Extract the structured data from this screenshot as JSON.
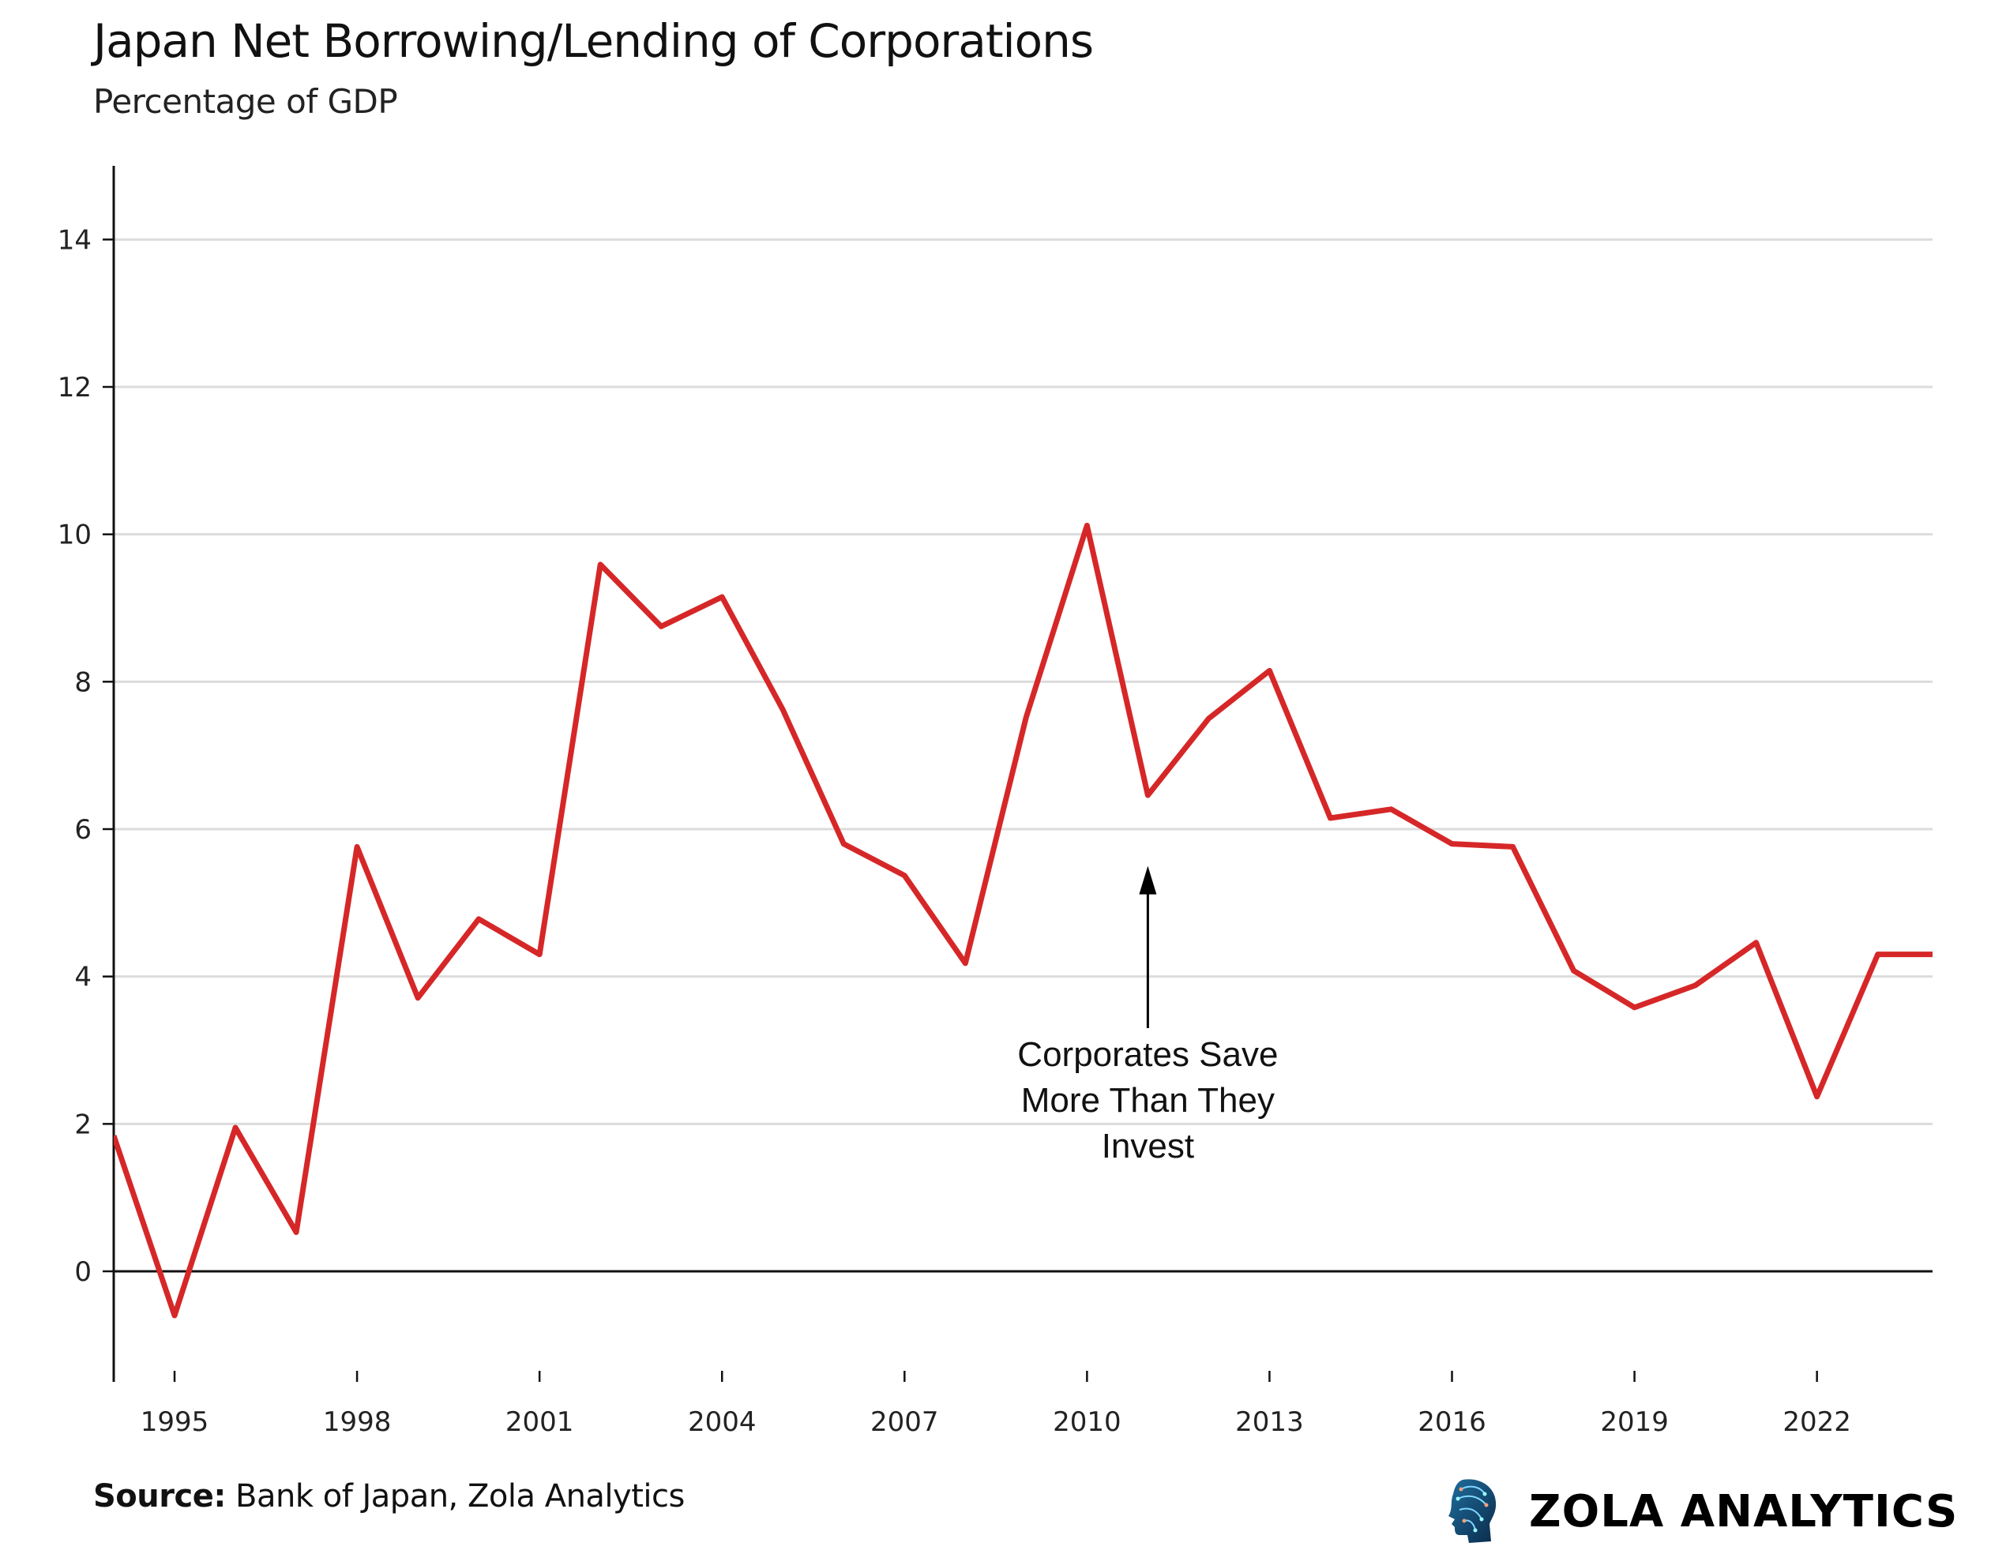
{
  "chart_data": {
    "type": "line",
    "title": "Japan Net Borrowing/Lending of Corporations",
    "subtitle": "Percentage of GDP",
    "xlabel": "",
    "ylabel": "",
    "xlim": [
      1994,
      2023.9
    ],
    "ylim": [
      -1.5,
      15
    ],
    "grid": true,
    "yticks": [
      0,
      2,
      4,
      6,
      8,
      10,
      12,
      14
    ],
    "xticks": [
      1995,
      1998,
      2001,
      2004,
      2007,
      2010,
      2013,
      2016,
      2019,
      2022
    ],
    "line_color": "#d62728",
    "x": [
      1994,
      1995,
      1996,
      1997,
      1998,
      1999,
      2000,
      2001,
      2002,
      2003,
      2004,
      2005,
      2006,
      2007,
      2008,
      2009,
      2010,
      2011,
      2012,
      2013,
      2014,
      2015,
      2016,
      2017,
      2018,
      2019,
      2020,
      2021,
      2022,
      2023,
      2024
    ],
    "values": [
      1.84,
      -0.6,
      1.95,
      0.53,
      5.76,
      3.71,
      4.78,
      4.3,
      9.59,
      8.75,
      9.15,
      7.62,
      5.8,
      5.37,
      4.18,
      7.52,
      10.12,
      6.46,
      7.5,
      8.15,
      6.15,
      6.27,
      5.8,
      5.76,
      4.08,
      3.58,
      3.88,
      4.46,
      2.37,
      4.3,
      4.3
    ],
    "annotation": {
      "lines": [
        "Corporates Save",
        "More Than They",
        "Invest"
      ],
      "arrow_x": 2011,
      "arrow_tip_y": 5.5,
      "arrow_base_y": 3.3
    }
  },
  "footer": {
    "source_label": "Source:",
    "source_text": " Bank of Japan, Zola Analytics",
    "brand": "ZOLA ANALYTICS"
  }
}
